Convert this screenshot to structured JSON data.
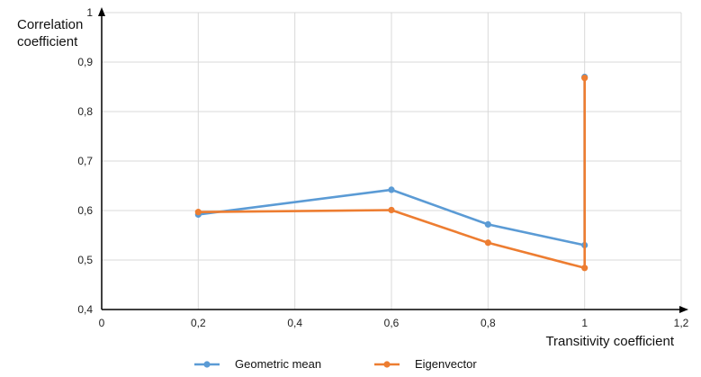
{
  "chart_data": {
    "type": "line",
    "title": "",
    "xlabel": "Transitivity coefficient",
    "ylabel": [
      "Correlation",
      "coefficient"
    ],
    "xlim": [
      0,
      1.2
    ],
    "ylim": [
      0.4,
      1
    ],
    "x_ticks": [
      "0",
      "0,2",
      "0,4",
      "0,6",
      "0,8",
      "1",
      "1,2"
    ],
    "x_tick_values": [
      0,
      0.2,
      0.4,
      0.6,
      0.8,
      1,
      1.2
    ],
    "y_ticks": [
      "0,4",
      "0,5",
      "0,6",
      "0,7",
      "0,8",
      "0,9",
      "1"
    ],
    "y_tick_values": [
      0.4,
      0.5,
      0.6,
      0.7,
      0.8,
      0.9,
      1
    ],
    "grid": true,
    "legend_position": "bottom",
    "series": [
      {
        "name": "Geometric mean",
        "color": "#5b9bd5",
        "points": [
          [
            0.2,
            0.592
          ],
          [
            0.6,
            0.642
          ],
          [
            0.8,
            0.572
          ],
          [
            1.0,
            0.53
          ],
          [
            1.0,
            0.87
          ]
        ]
      },
      {
        "name": "Eigenvector",
        "color": "#ed7d31",
        "points": [
          [
            0.2,
            0.597
          ],
          [
            0.6,
            0.601
          ],
          [
            0.8,
            0.535
          ],
          [
            1.0,
            0.484
          ],
          [
            1.0,
            0.868
          ]
        ]
      }
    ]
  }
}
